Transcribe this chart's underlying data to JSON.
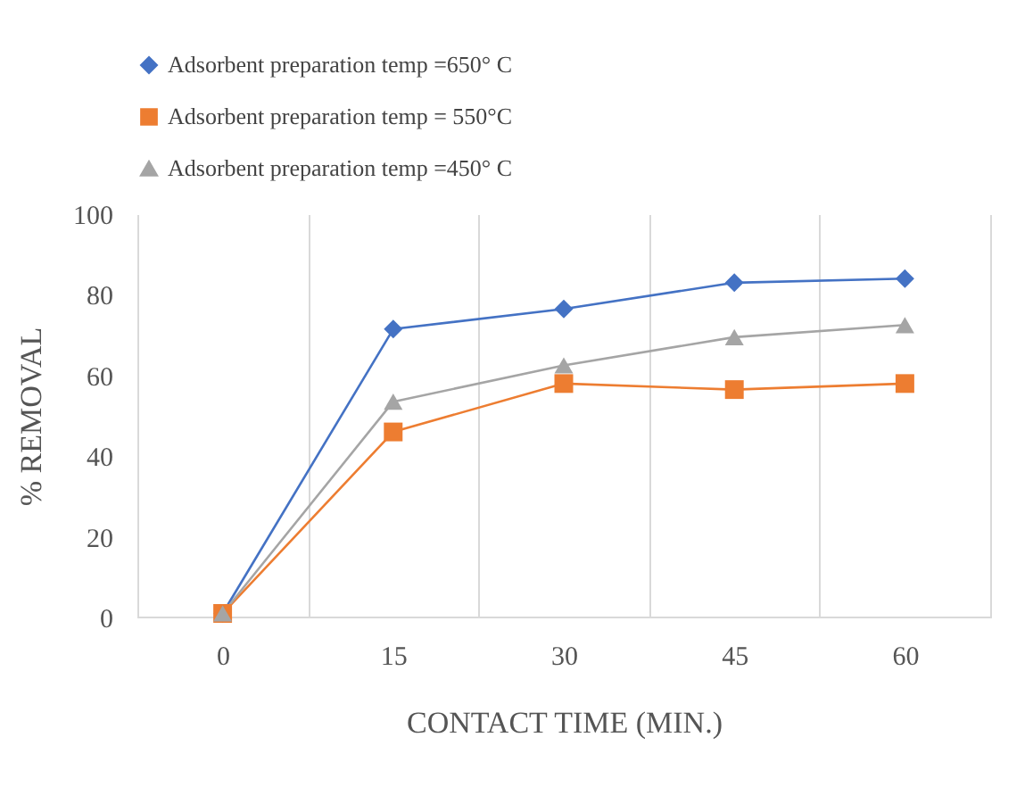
{
  "chart_data": {
    "type": "line",
    "xlabel": "CONTACT TIME (MIN.)",
    "ylabel": "% REMOVAL",
    "categories": [
      "0",
      "15",
      "30",
      "45",
      "60"
    ],
    "series": [
      {
        "name": "Adsorbent preparation temp =650° C",
        "color": "#4472c4",
        "marker": "diamond",
        "values": [
          1,
          71.5,
          76.5,
          83,
          84
        ]
      },
      {
        "name": "Adsorbent preparation temp = 550°C",
        "color": "#ed7d31",
        "marker": "square",
        "values": [
          1,
          46,
          58,
          56.5,
          58
        ]
      },
      {
        "name": "Adsorbent preparation temp =450° C",
        "color": "#a5a5a5",
        "marker": "triangle",
        "values": [
          1,
          53.5,
          62.5,
          69.5,
          72.5
        ]
      }
    ],
    "ylim": [
      0,
      100
    ],
    "yticks": [
      0,
      20,
      40,
      60,
      80,
      100
    ],
    "grid": "x",
    "legend": "top",
    "line_style": "solid"
  }
}
